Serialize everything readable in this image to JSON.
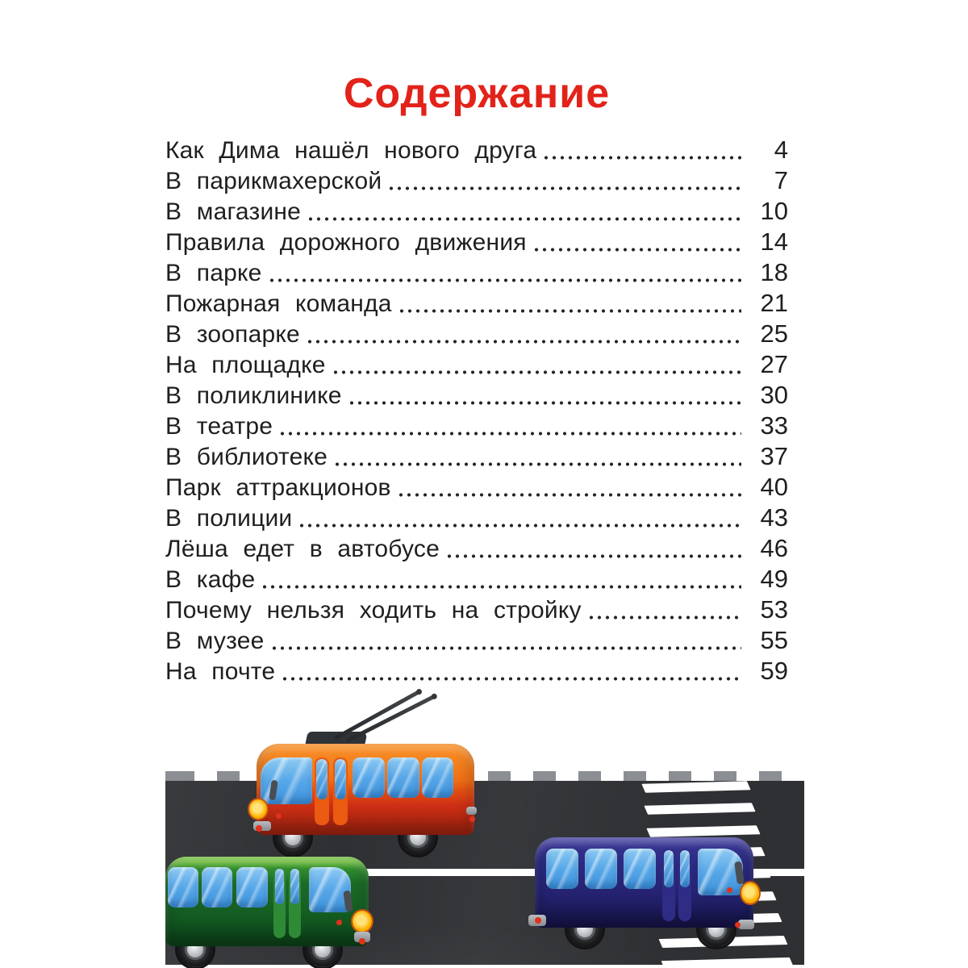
{
  "title": {
    "text": "Содержание",
    "color": "#e2231a"
  },
  "toc": {
    "items": [
      {
        "label": "Как Дима нашёл нового друга",
        "page": "4"
      },
      {
        "label": "В парикмахерской",
        "page": "7"
      },
      {
        "label": "В магазине",
        "page": "10"
      },
      {
        "label": "Правила дорожного движения",
        "page": "14"
      },
      {
        "label": "В парке",
        "page": "18"
      },
      {
        "label": "Пожарная команда",
        "page": "21"
      },
      {
        "label": "В зоопарке",
        "page": "25"
      },
      {
        "label": "На площадке",
        "page": "27"
      },
      {
        "label": "В поликлинике",
        "page": "30"
      },
      {
        "label": "В театре",
        "page": "33"
      },
      {
        "label": "В библиотеке",
        "page": "37"
      },
      {
        "label": "Парк аттракционов",
        "page": "40"
      },
      {
        "label": "В полиции",
        "page": "43"
      },
      {
        "label": "Лёша едет в автобусе",
        "page": "46"
      },
      {
        "label": "В кафе",
        "page": "49"
      },
      {
        "label": "Почему нельзя ходить на стройку",
        "page": "53"
      },
      {
        "label": "В музее",
        "page": "55"
      },
      {
        "label": "На почте",
        "page": "59"
      }
    ]
  },
  "illustration": {
    "vehicles": [
      "trolleybus",
      "green bus",
      "blue bus"
    ],
    "road_markings": [
      "center line",
      "zebra crossing",
      "curb tiles"
    ],
    "colors": {
      "title_color": "#e2231a",
      "road": "#2e3033",
      "curb": "#8b8e92",
      "marking": "#ffffff",
      "trolleybus_roof": "#f5831f",
      "trolleybus_body": "#ce2f15",
      "trolleybus_door": "#ea5a10",
      "green_bus_roof": "#69b73a",
      "green_bus_body": "#155e23",
      "green_bus_door": "#2e8a35",
      "blue_bus_roof": "#353390",
      "blue_bus_body": "#252371",
      "blue_bus_door": "#2e2c85",
      "headlight": "#ffb300",
      "tail_light": "#e2311c"
    }
  }
}
